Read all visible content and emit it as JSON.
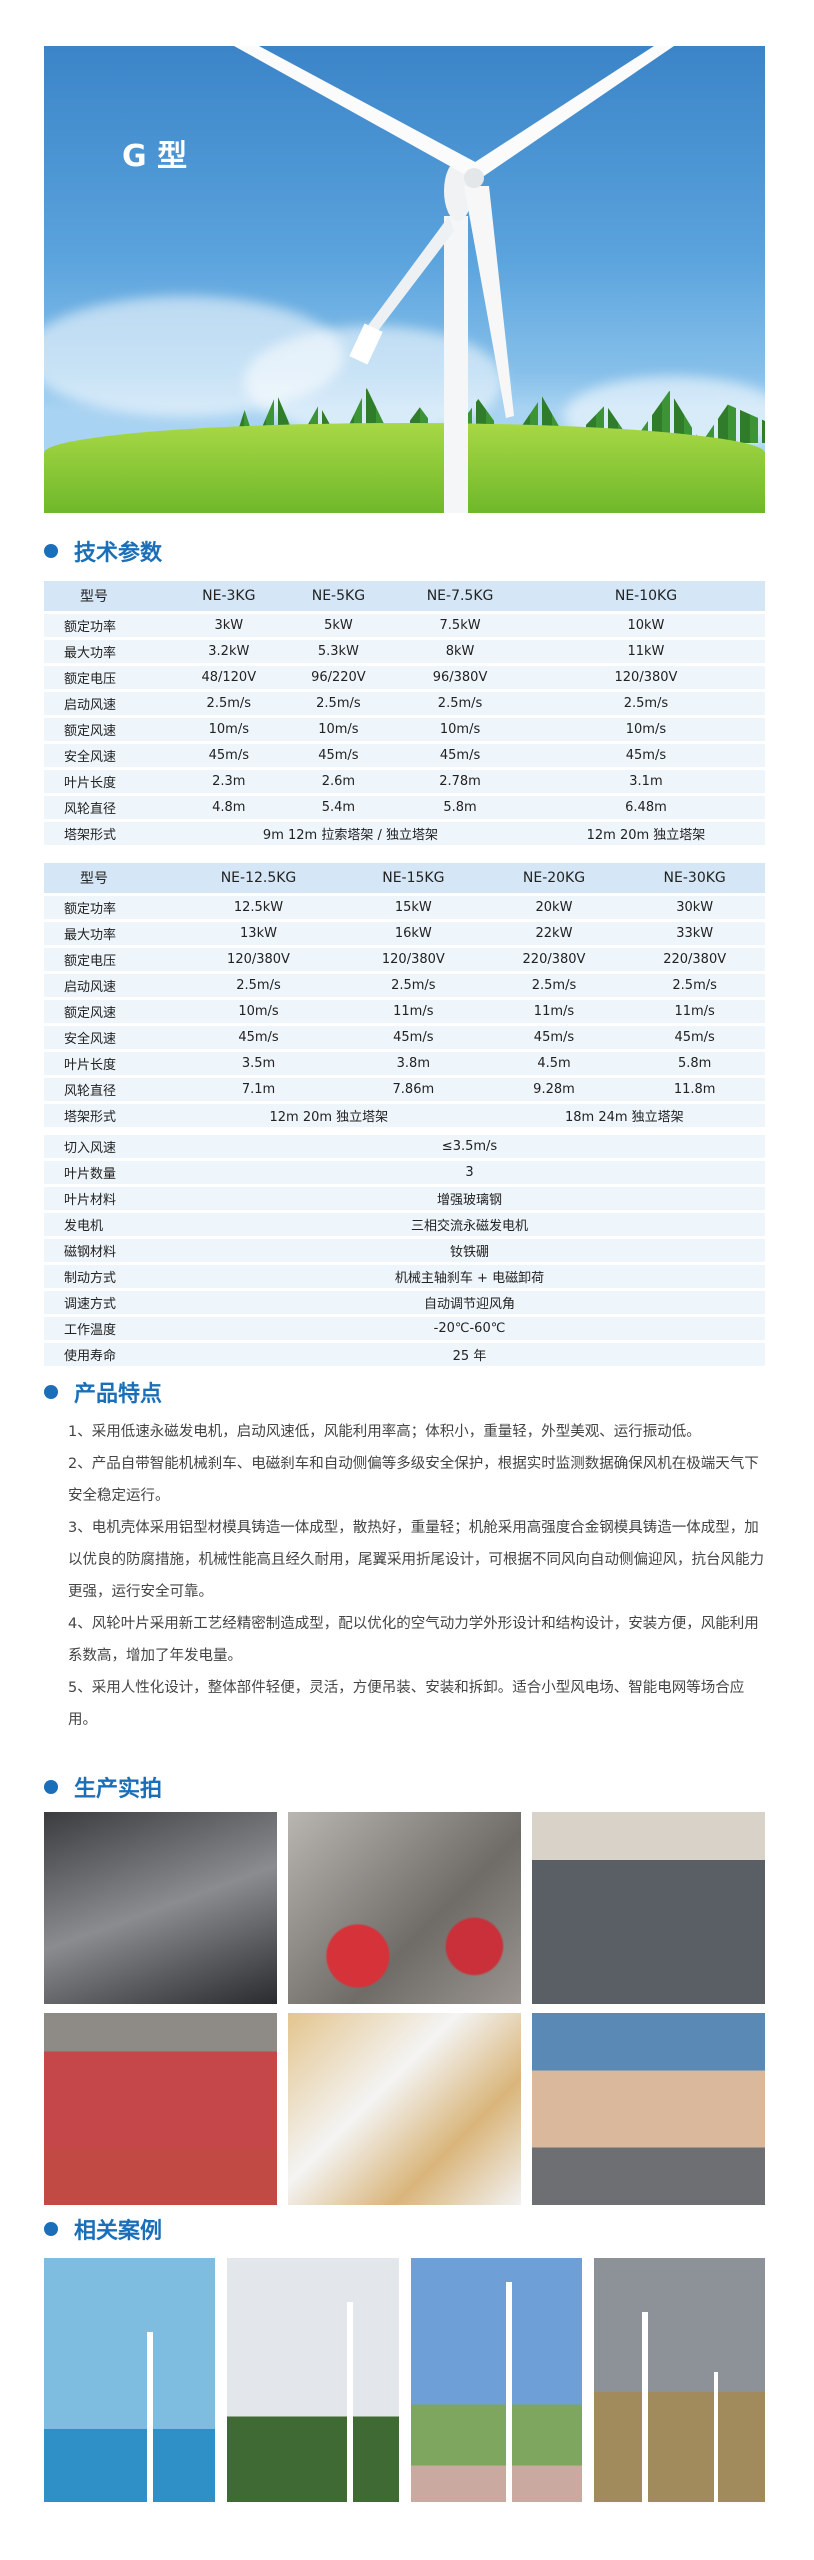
{
  "hero": {
    "title": "G 型"
  },
  "sections": {
    "specs": "技术参数",
    "features": "产品特点",
    "production": "生产实拍",
    "cases": "相关案例"
  },
  "table1": {
    "header": [
      "型号",
      "NE-3KG",
      "NE-5KG",
      "NE-7.5KG",
      "NE-10KG"
    ],
    "rows": [
      [
        "额定功率",
        "3kW",
        "5kW",
        "7.5kW",
        "10kW"
      ],
      [
        "最大功率",
        "3.2kW",
        "5.3kW",
        "8kW",
        "11kW"
      ],
      [
        "额定电压",
        "48/120V",
        "96/220V",
        "96/380V",
        "120/380V"
      ],
      [
        "启动风速",
        "2.5m/s",
        "2.5m/s",
        "2.5m/s",
        "2.5m/s"
      ],
      [
        "额定风速",
        "10m/s",
        "10m/s",
        "10m/s",
        "10m/s"
      ],
      [
        "安全风速",
        "45m/s",
        "45m/s",
        "45m/s",
        "45m/s"
      ],
      [
        "叶片长度",
        "2.3m",
        "2.6m",
        "2.78m",
        "3.1m"
      ],
      [
        "风轮直径",
        "4.8m",
        "5.4m",
        "5.8m",
        "6.48m"
      ]
    ],
    "tower": [
      "塔架形式",
      "9m 12m 拉索塔架 / 独立塔架",
      "12m 20m 独立塔架"
    ]
  },
  "table2": {
    "header": [
      "型号",
      "NE-12.5KG",
      "NE-15KG",
      "NE-20KG",
      "NE-30KG"
    ],
    "rows": [
      [
        "额定功率",
        "12.5kW",
        "15kW",
        "20kW",
        "30kW"
      ],
      [
        "最大功率",
        "13kW",
        "16kW",
        "22kW",
        "33kW"
      ],
      [
        "额定电压",
        "120/380V",
        "120/380V",
        "220/380V",
        "220/380V"
      ],
      [
        "启动风速",
        "2.5m/s",
        "2.5m/s",
        "2.5m/s",
        "2.5m/s"
      ],
      [
        "额定风速",
        "10m/s",
        "11m/s",
        "11m/s",
        "11m/s"
      ],
      [
        "安全风速",
        "45m/s",
        "45m/s",
        "45m/s",
        "45m/s"
      ],
      [
        "叶片长度",
        "3.5m",
        "3.8m",
        "4.5m",
        "5.8m"
      ],
      [
        "风轮直径",
        "7.1m",
        "7.86m",
        "9.28m",
        "11.8m"
      ]
    ],
    "tower": [
      "塔架形式",
      "12m 20m 独立塔架",
      "18m 24m 独立塔架"
    ]
  },
  "table3": [
    [
      "切入风速",
      "≤3.5m/s"
    ],
    [
      "叶片数量",
      "3"
    ],
    [
      "叶片材料",
      "增强玻璃钢"
    ],
    [
      "发电机",
      "三相交流永磁发电机"
    ],
    [
      "磁钢材料",
      "钕铁硼"
    ],
    [
      "制动方式",
      "机械主轴刹车 + 电磁卸荷"
    ],
    [
      "调速方式",
      "自动调节迎风角"
    ],
    [
      "工作温度",
      "-20℃-60℃"
    ],
    [
      "使用寿命",
      "25 年"
    ]
  ],
  "features": [
    "1、采用低速永磁发电机，启动风速低，风能利用率高；体积小，重量轻，外型美观、运行振动低。",
    "2、产品自带智能机械刹车、电磁刹车和自动侧偏等多级安全保护，根据实时监测数据确保风机在极端天气下安全稳定运行。",
    "3、电机壳体采用铝型材模具铸造一体成型，散热好，重量轻；机舱采用高强度合金钢模具铸造一体成型，加以优良的防腐措施，机械性能高且经久耐用，尾翼采用折尾设计，可根据不同风向自动侧偏迎风，抗台风能力更强，运行安全可靠。",
    "4、风轮叶片采用新工艺经精密制造成型，配以优化的空气动力学外形设计和结构设计，安装方便，风能利用系数高，增加了年发电量。",
    "5、采用人性化设计，整体部件轻便，灵活，方便吊装、安装和拆卸。适合小型风电场、智能电网等场合应用。"
  ],
  "colors": {
    "accent": "#1a6fb8",
    "table_header": "#d5e7f6",
    "table_row": "#eef5fb"
  }
}
